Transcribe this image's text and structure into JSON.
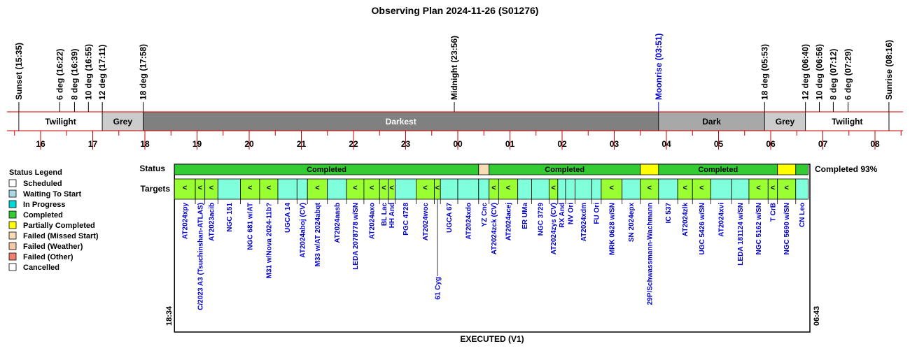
{
  "chart_data": {
    "type": "timeline",
    "title": "Observing Plan 2024-11-26 (S01276)",
    "footer": "EXECUTED (V1)",
    "start_time": "18:34",
    "end_time": "06:43",
    "completion_text": "Completed 93%",
    "row_labels": {
      "status": "Status",
      "targets": "Targets"
    },
    "colors": {
      "completed": "#33cc33",
      "partial": "#ffff00",
      "missed": "#f7dcb4",
      "target_a": "#99ff33",
      "target_b": "#80ffdd",
      "scheduled": "#ffffff",
      "waiting": "#aad8e6",
      "inprogress": "#00d8d8",
      "weather": "#f4c8a8",
      "other": "#f08070",
      "cancelled": "#ffffff",
      "night_line": "#cc0000",
      "twilight": "#ffffff",
      "grey": "#cccccc",
      "darkest": "#808080",
      "dark": "#a8a8a8",
      "moon": "#0000cc"
    },
    "sky_events": [
      {
        "label": "Sunset (15:35)",
        "t": 15.583,
        "color": "#000000"
      },
      {
        "label": "6 deg (16:22)",
        "t": 16.367,
        "color": "#000000"
      },
      {
        "label": "8 deg (16:39)",
        "t": 16.65,
        "color": "#000000"
      },
      {
        "label": "10 deg (16:55)",
        "t": 16.917,
        "color": "#000000"
      },
      {
        "label": "12 deg (17:11)",
        "t": 17.183,
        "color": "#000000"
      },
      {
        "label": "18 deg (17:58)",
        "t": 17.967,
        "color": "#000000"
      },
      {
        "label": "Midnight (23:56)",
        "t": 23.933,
        "color": "#000000"
      },
      {
        "label": "Moonrise (03:51)",
        "t": 27.85,
        "color": "#0000cc"
      },
      {
        "label": "18 deg (05:53)",
        "t": 29.883,
        "color": "#000000"
      },
      {
        "label": "12 deg (06:40)",
        "t": 30.667,
        "color": "#000000"
      },
      {
        "label": "10 deg (06:56)",
        "t": 30.933,
        "color": "#000000"
      },
      {
        "label": "8 deg (07:12)",
        "t": 31.2,
        "color": "#000000"
      },
      {
        "label": "6 deg (07:29)",
        "t": 31.483,
        "color": "#000000"
      },
      {
        "label": "Sunrise (08:16)",
        "t": 32.267,
        "color": "#000000"
      }
    ],
    "sky_bands": [
      {
        "label": "Twilight",
        "start": 15.583,
        "end": 17.183,
        "fill": "twilight",
        "text_color": "#000000"
      },
      {
        "label": "Grey",
        "start": 17.183,
        "end": 17.967,
        "fill": "grey",
        "text_color": "#000000"
      },
      {
        "label": "Darkest",
        "start": 17.967,
        "end": 27.85,
        "fill": "darkest",
        "text_color": "#ffffff"
      },
      {
        "label": "Dark",
        "start": 27.85,
        "end": 29.883,
        "fill": "dark",
        "text_color": "#000000"
      },
      {
        "label": "Grey",
        "start": 29.883,
        "end": 30.667,
        "fill": "grey",
        "text_color": "#000000"
      },
      {
        "label": "Twilight",
        "start": 30.667,
        "end": 32.267,
        "fill": "twilight",
        "text_color": "#000000"
      }
    ],
    "hour_labels": [
      "16",
      "17",
      "18",
      "19",
      "20",
      "21",
      "22",
      "23",
      "00",
      "01",
      "02",
      "03",
      "04",
      "05",
      "06",
      "07",
      "08"
    ],
    "hour_start": 16,
    "status_segments": [
      {
        "label": "Completed",
        "start": 18.567,
        "end": 24.4,
        "state": "completed"
      },
      {
        "label": "",
        "start": 24.4,
        "end": 24.6,
        "state": "missed"
      },
      {
        "label": "Completed",
        "start": 24.6,
        "end": 27.5,
        "state": "completed"
      },
      {
        "label": "",
        "start": 27.5,
        "end": 27.85,
        "state": "partial"
      },
      {
        "label": "Completed",
        "start": 27.85,
        "end": 30.13,
        "state": "completed"
      },
      {
        "label": "",
        "start": 30.13,
        "end": 30.48,
        "state": "partial"
      },
      {
        "label": "",
        "start": 30.48,
        "end": 30.717,
        "state": "completed"
      }
    ],
    "targets": [
      {
        "name": "AT2024xpy",
        "start": 18.567,
        "end": 18.967,
        "fill": "target_a",
        "mark": "<",
        "lane": 0
      },
      {
        "name": "C/2023 A3 (Tsuchinshan-ATLAS)",
        "start": 18.967,
        "end": 19.15,
        "fill": "target_a",
        "mark": "<",
        "lane": 1
      },
      {
        "name": "AT2023acib",
        "start": 19.15,
        "end": 19.4,
        "fill": "target_a",
        "mark": "<",
        "lane": 0
      },
      {
        "name": "NGC 151",
        "start": 19.4,
        "end": 19.833,
        "fill": "target_b",
        "mark": "",
        "lane": 0
      },
      {
        "name": "NGC 681 w/AT",
        "start": 19.833,
        "end": 20.2,
        "fill": "target_a",
        "mark": "<",
        "lane": 0
      },
      {
        "name": "M31 w/Nova 2024-11b?",
        "start": 20.2,
        "end": 20.55,
        "fill": "target_a",
        "mark": "<",
        "lane": 1
      },
      {
        "name": "UGCA 14",
        "start": 20.55,
        "end": 20.917,
        "fill": "target_b",
        "mark": "",
        "lane": 0
      },
      {
        "name": "AT2024aboj (CV)",
        "start": 20.917,
        "end": 21.117,
        "fill": "target_b",
        "mark": "",
        "lane": 0
      },
      {
        "name": "M33 w/AT 2024abqt",
        "start": 21.117,
        "end": 21.5,
        "fill": "target_a",
        "mark": "<",
        "lane": 0
      },
      {
        "name": "AT2024aasb",
        "start": 21.5,
        "end": 21.867,
        "fill": "target_b",
        "mark": "",
        "lane": 0
      },
      {
        "name": "LEDA 2078778 w/SN",
        "start": 21.867,
        "end": 22.2,
        "fill": "target_a",
        "mark": "<",
        "lane": 0
      },
      {
        "name": "AT2024axo",
        "start": 22.2,
        "end": 22.5,
        "fill": "target_a",
        "mark": "<",
        "lane": 0
      },
      {
        "name": "BL Lac",
        "start": 22.5,
        "end": 22.667,
        "fill": "target_a",
        "mark": "<",
        "lane": 0
      },
      {
        "name": "HH And",
        "start": 22.667,
        "end": 22.8,
        "fill": "target_a",
        "mark": "<",
        "lane": 0
      },
      {
        "name": "PGC 4728",
        "start": 22.8,
        "end": 23.2,
        "fill": "target_b",
        "mark": "",
        "lane": 0
      },
      {
        "name": "AT2024woc",
        "start": 23.2,
        "end": 23.55,
        "fill": "target_a",
        "mark": "<",
        "lane": 0
      },
      {
        "name": "61 Cyg",
        "start": 23.55,
        "end": 23.667,
        "fill": "target_a",
        "mark": "<",
        "lane": 2
      },
      {
        "name": "UGCA 67",
        "start": 23.667,
        "end": 24.0,
        "fill": "target_b",
        "mark": "",
        "lane": 0
      },
      {
        "name": "AT2024xdo",
        "start": 24.0,
        "end": 24.4,
        "fill": "target_b",
        "mark": "",
        "lane": 0
      },
      {
        "name": "YZ Cnc",
        "start": 24.4,
        "end": 24.6,
        "fill": "target_b",
        "mark": "",
        "lane": 0
      },
      {
        "name": "AT2024zck (CV)",
        "start": 24.6,
        "end": 24.783,
        "fill": "target_a",
        "mark": "<",
        "lane": 0
      },
      {
        "name": "AT2024acej",
        "start": 24.783,
        "end": 25.15,
        "fill": "target_a",
        "mark": "<",
        "lane": 0
      },
      {
        "name": "ER UMa",
        "start": 25.15,
        "end": 25.417,
        "fill": "target_b",
        "mark": "",
        "lane": 0
      },
      {
        "name": "NGC 3729",
        "start": 25.417,
        "end": 25.75,
        "fill": "target_b",
        "mark": "",
        "lane": 0
      },
      {
        "name": "AT2024zys (CV)",
        "start": 25.75,
        "end": 25.917,
        "fill": "target_a",
        "mark": "<",
        "lane": 0
      },
      {
        "name": "RX And",
        "start": 25.917,
        "end": 26.067,
        "fill": "target_b",
        "mark": "",
        "lane": 0
      },
      {
        "name": "NV Ori",
        "start": 26.067,
        "end": 26.25,
        "fill": "target_b",
        "mark": "",
        "lane": 0
      },
      {
        "name": "AT2024xdm",
        "start": 26.25,
        "end": 26.567,
        "fill": "target_b",
        "mark": "",
        "lane": 0
      },
      {
        "name": "FU Ori",
        "start": 26.567,
        "end": 26.75,
        "fill": "target_b",
        "mark": "",
        "lane": 0
      },
      {
        "name": "MRK 0628 w/SN",
        "start": 26.75,
        "end": 27.15,
        "fill": "target_a",
        "mark": "<",
        "lane": 0
      },
      {
        "name": "SN 2024epx",
        "start": 27.15,
        "end": 27.5,
        "fill": "target_b",
        "mark": "",
        "lane": 0
      },
      {
        "name": "29P/Schwassmann-Wachmann",
        "start": 27.5,
        "end": 27.85,
        "fill": "target_a",
        "mark": "<",
        "lane": 1
      },
      {
        "name": "IC 537",
        "start": 27.85,
        "end": 28.217,
        "fill": "target_b",
        "mark": "",
        "lane": 0
      },
      {
        "name": "AT2024zlk",
        "start": 28.217,
        "end": 28.5,
        "fill": "target_a",
        "mark": "<",
        "lane": 0
      },
      {
        "name": "UGC 5426 w/SN",
        "start": 28.5,
        "end": 28.85,
        "fill": "target_a",
        "mark": "<",
        "lane": 0
      },
      {
        "name": "AT2024xvi",
        "start": 28.85,
        "end": 29.25,
        "fill": "target_b",
        "mark": "",
        "lane": 0
      },
      {
        "name": "LEDA 181124 w/SN",
        "start": 29.25,
        "end": 29.583,
        "fill": "target_b",
        "mark": "",
        "lane": 0
      },
      {
        "name": "NGC 5162 w/SN",
        "start": 29.583,
        "end": 29.95,
        "fill": "target_a",
        "mark": "<",
        "lane": 0
      },
      {
        "name": "T CrB",
        "start": 29.95,
        "end": 30.13,
        "fill": "target_a",
        "mark": "<",
        "lane": 0
      },
      {
        "name": "NGC 5690 w/SN",
        "start": 30.13,
        "end": 30.48,
        "fill": "target_a",
        "mark": "<",
        "lane": 0
      },
      {
        "name": "CN Leo",
        "start": 30.48,
        "end": 30.717,
        "fill": "target_b",
        "mark": "",
        "lane": 0
      }
    ],
    "legend": {
      "title": "Status Legend",
      "items": [
        {
          "label": "Scheduled",
          "color": "scheduled"
        },
        {
          "label": "Waiting To Start",
          "color": "waiting"
        },
        {
          "label": "In Progress",
          "color": "inprogress"
        },
        {
          "label": "Completed",
          "color": "completed"
        },
        {
          "label": "Partially Completed",
          "color": "partial"
        },
        {
          "label": "Failed (Missed Start)",
          "color": "missed"
        },
        {
          "label": "Failed (Weather)",
          "color": "weather"
        },
        {
          "label": "Failed (Other)",
          "color": "other"
        },
        {
          "label": "Cancelled",
          "color": "cancelled"
        }
      ]
    }
  }
}
